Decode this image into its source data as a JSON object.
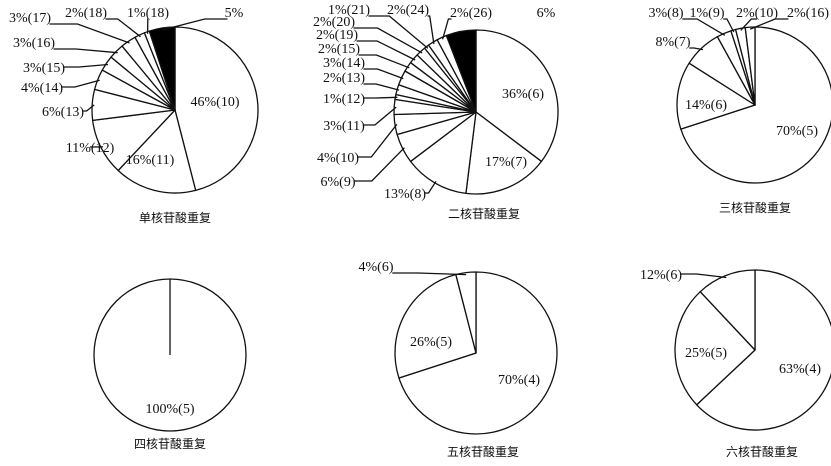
{
  "colors": {
    "stroke": "#111111",
    "wedge_fill": "#ffffff",
    "highlight_fill": "#000000"
  },
  "chart_data": [
    {
      "type": "pie",
      "title": "单核苷酸重复",
      "slices": [
        {
          "label": "46%(10)",
          "value": 46
        },
        {
          "label": "16%(11)",
          "value": 16
        },
        {
          "label": "11%(12)",
          "value": 11
        },
        {
          "label": "6%(13)",
          "value": 6
        },
        {
          "label": "4%(14)",
          "value": 4
        },
        {
          "label": "3%(15)",
          "value": 3
        },
        {
          "label": "3%(16)",
          "value": 3
        },
        {
          "label": "3%(17)",
          "value": 3
        },
        {
          "label": "2%(18)",
          "value": 2
        },
        {
          "label": "1%(18)",
          "value": 1
        },
        {
          "label": "5%",
          "value": 5,
          "fill": "black"
        }
      ]
    },
    {
      "type": "pie",
      "title": "二核苷酸重复",
      "slices": [
        {
          "label": "36%(6)",
          "value": 36
        },
        {
          "label": "17%(7)",
          "value": 17
        },
        {
          "label": "13%(8)",
          "value": 13
        },
        {
          "label": "6%(9)",
          "value": 6
        },
        {
          "label": "4%(10)",
          "value": 4
        },
        {
          "label": "3%(11)",
          "value": 3
        },
        {
          "label": "1%(12)",
          "value": 1
        },
        {
          "label": "2%(13)",
          "value": 2
        },
        {
          "label": "3%(14)",
          "value": 3
        },
        {
          "label": "2%(15)",
          "value": 2
        },
        {
          "label": "2%(19)",
          "value": 2
        },
        {
          "label": "2%(20)",
          "value": 2
        },
        {
          "label": "1%(21)",
          "value": 1
        },
        {
          "label": "2%(24)",
          "value": 2
        },
        {
          "label": "2%(26)",
          "value": 2
        },
        {
          "label": "6%",
          "value": 6,
          "fill": "black"
        }
      ]
    },
    {
      "type": "pie",
      "title": "三核苷酸重复",
      "slices": [
        {
          "label": "70%(5)",
          "value": 70
        },
        {
          "label": "14%(6)",
          "value": 14
        },
        {
          "label": "8%(7)",
          "value": 8
        },
        {
          "label": "3%(8)",
          "value": 3
        },
        {
          "label": "1%(9)",
          "value": 1
        },
        {
          "label": "2%(10)",
          "value": 2
        },
        {
          "label": "2%(16)",
          "value": 2
        }
      ]
    },
    {
      "type": "pie",
      "title": "四核苷酸重复",
      "slices": [
        {
          "label": "100%(5)",
          "value": 100
        }
      ]
    },
    {
      "type": "pie",
      "title": "五核苷酸重复",
      "slices": [
        {
          "label": "70%(4)",
          "value": 70
        },
        {
          "label": "26%(5)",
          "value": 26
        },
        {
          "label": "4%(6)",
          "value": 4
        }
      ]
    },
    {
      "type": "pie",
      "title": "六核苷酸重复",
      "slices": [
        {
          "label": "63%(4)",
          "value": 63
        },
        {
          "label": "25%(5)",
          "value": 25
        },
        {
          "label": "12%(6)",
          "value": 12
        }
      ]
    }
  ]
}
